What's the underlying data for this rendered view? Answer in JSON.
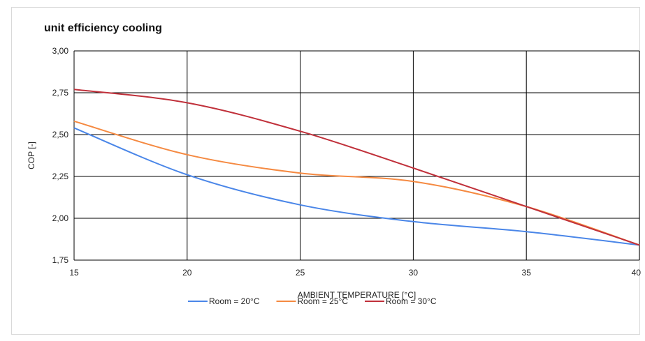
{
  "chart_data": {
    "type": "line",
    "title": "unit efficiency cooling",
    "xlabel": "AMBIENT TEMPERATURE [°C]",
    "ylabel": "COP [-]",
    "xlim": [
      15,
      40
    ],
    "ylim": [
      1.75,
      3.0
    ],
    "x_ticks": [
      15,
      20,
      25,
      30,
      35,
      40
    ],
    "y_ticks": [
      1.75,
      2.0,
      2.25,
      2.5,
      2.75,
      3.0
    ],
    "x_tick_labels": [
      "15",
      "20",
      "25",
      "30",
      "35",
      "40"
    ],
    "y_tick_labels": [
      "1,75",
      "2,00",
      "2,25",
      "2,50",
      "2,75",
      "3,00"
    ],
    "grid": true,
    "legend_position": "bottom",
    "x": [
      15,
      20,
      25,
      30,
      35,
      40
    ],
    "series": [
      {
        "name": "Room = 20°C",
        "color": "#4a86e8",
        "values": [
          2.54,
          2.26,
          2.08,
          1.98,
          1.92,
          1.84
        ]
      },
      {
        "name": "Room = 25°C",
        "color": "#f58a42",
        "values": [
          2.58,
          2.38,
          2.27,
          2.22,
          2.07,
          1.84
        ]
      },
      {
        "name": "Room = 30°C",
        "color": "#c0303a",
        "values": [
          2.77,
          2.69,
          2.52,
          2.3,
          2.07,
          1.84
        ]
      }
    ]
  }
}
